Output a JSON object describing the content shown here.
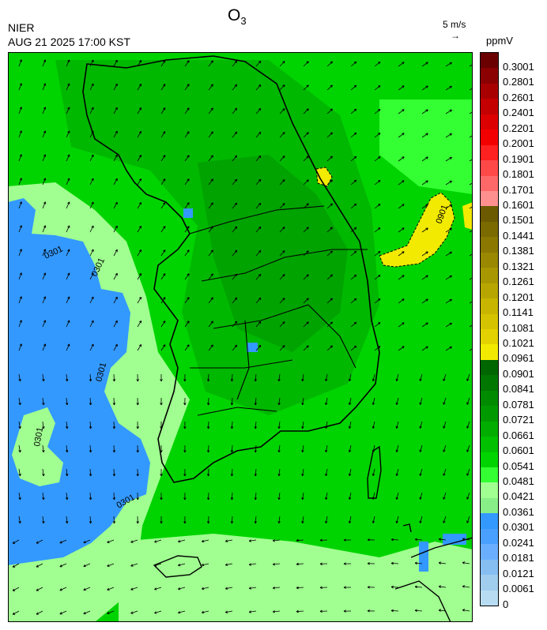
{
  "header": {
    "org": "NIER",
    "timestamp": "AUG 21 2025 17:00 KST",
    "title_main": "O",
    "title_sub": "3",
    "wind_reference": "5 m/s",
    "wind_arrow_glyph": "→",
    "unit": "ppmV"
  },
  "colorbar": {
    "labels": [
      "0.3001",
      "0.2801",
      "0.2601",
      "0.2401",
      "0.2201",
      "0.2001",
      "0.1901",
      "0.1801",
      "0.1701",
      "0.1601",
      "0.1501",
      "0.1441",
      "0.1381",
      "0.1321",
      "0.1261",
      "0.1201",
      "0.1141",
      "0.1081",
      "0.1021",
      "0.0961",
      "0.0901",
      "0.0841",
      "0.0781",
      "0.0721",
      "0.0661",
      "0.0601",
      "0.0541",
      "0.0481",
      "0.0421",
      "0.0361",
      "0.0301",
      "0.0241",
      "0.0181",
      "0.0121",
      "0.0061",
      "0"
    ],
    "colors": [
      "#6b0000",
      "#8b0000",
      "#a80000",
      "#c40000",
      "#dd0000",
      "#f20000",
      "#ff2020",
      "#ff4848",
      "#ff6868",
      "#ff9090",
      "#6b5a00",
      "#7a6a00",
      "#8a7800",
      "#998800",
      "#a89700",
      "#b8a600",
      "#c7b500",
      "#d6c300",
      "#e3d100",
      "#f2ea00",
      "#006600",
      "#007700",
      "#008a00",
      "#009a00",
      "#00ad00",
      "#00c000",
      "#00d400",
      "#33ff33",
      "#a0ff90",
      "#88ee88",
      "#3399ff",
      "#4aa0ff",
      "#6aafff",
      "#86bef2",
      "#a0ccee",
      "#b8ddf2"
    ]
  },
  "map": {
    "contour_labels": [
      "0901",
      "0901",
      "0301",
      "0301",
      "0301",
      "0301",
      "0301",
      "0301"
    ]
  }
}
